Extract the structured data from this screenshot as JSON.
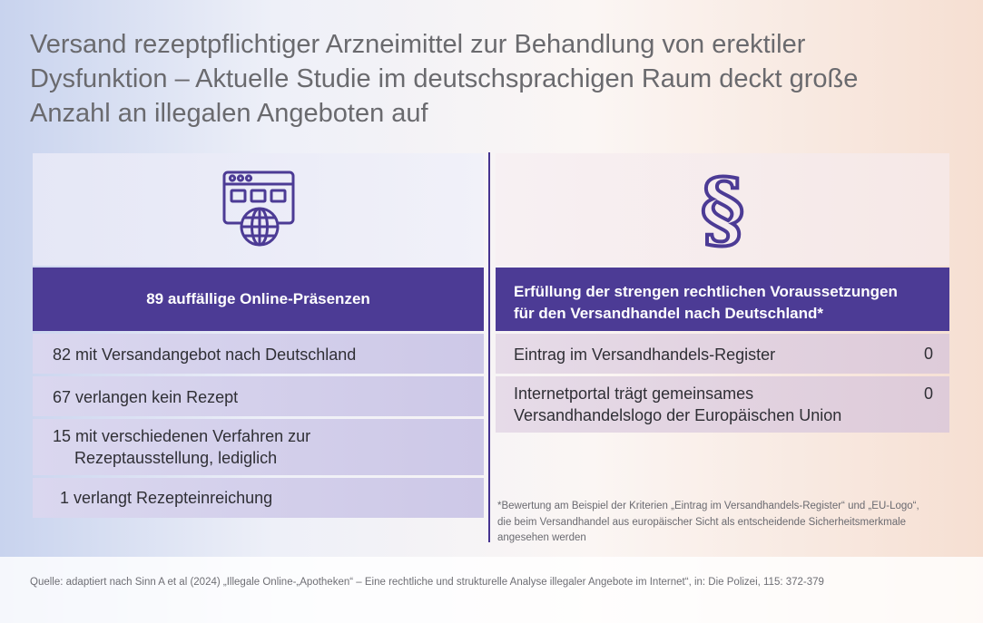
{
  "title": {
    "line1": "Versand rezeptpflichtiger Arzneimittel zur Behandlung von erektiler",
    "line2": "Dysfunktion – Aktuelle Studie im deutschsprachigen Raum deckt große",
    "line3": "Anzahl an illegalen Angeboten auf"
  },
  "left_panel": {
    "icon": "web-browser-globe-icon",
    "header": "89 auffällige Online-Präsenzen",
    "rows": [
      {
        "lines": [
          "82 mit Versandangebot nach Deutschland"
        ]
      },
      {
        "lines": [
          "67 verlangen kein Rezept"
        ]
      },
      {
        "lines": [
          "15 mit verschiedenen Verfahren zur",
          "Rezeptausstellung, lediglich"
        ]
      },
      {
        "lines": [
          "1 verlangt Rezepteinreichung"
        ]
      }
    ]
  },
  "right_panel": {
    "icon": "section-sign-icon",
    "icon_glyph": "§",
    "header": {
      "line1": "Erfüllung der strengen rechtlichen Voraussetzungen",
      "line2": "für den Versandhandel nach Deutschland*"
    },
    "rows": [
      {
        "lines": [
          "Eintrag im Versandhandels-Register"
        ],
        "value": "0"
      },
      {
        "lines": [
          "Internetportal trägt gemeinsames",
          "Versandhandelslogo der Europäischen Union"
        ],
        "value": "0"
      }
    ],
    "footnote": {
      "line1": "*Bewertung am Beispiel der Kriterien „Eintrag im Versandhandels-Register“ und „EU-Logo“,",
      "line2": "die beim Versandhandel aus europäischer Sicht als entscheidende Sicherheitsmerkmale",
      "line3": "angesehen werden"
    }
  },
  "source": "Quelle: adaptiert nach Sinn A et al (2024) „Illegale Online-„Apotheken“ – Eine rechtliche und strukturelle Analyse illegaler Angebote im Internet“, in: Die Polizei, 115: 372-379",
  "colors": {
    "accent": "#4c3b95",
    "title_text": "#6a6a6e",
    "row_left": "#d4d0ec",
    "row_right": "#e2d3e1"
  }
}
